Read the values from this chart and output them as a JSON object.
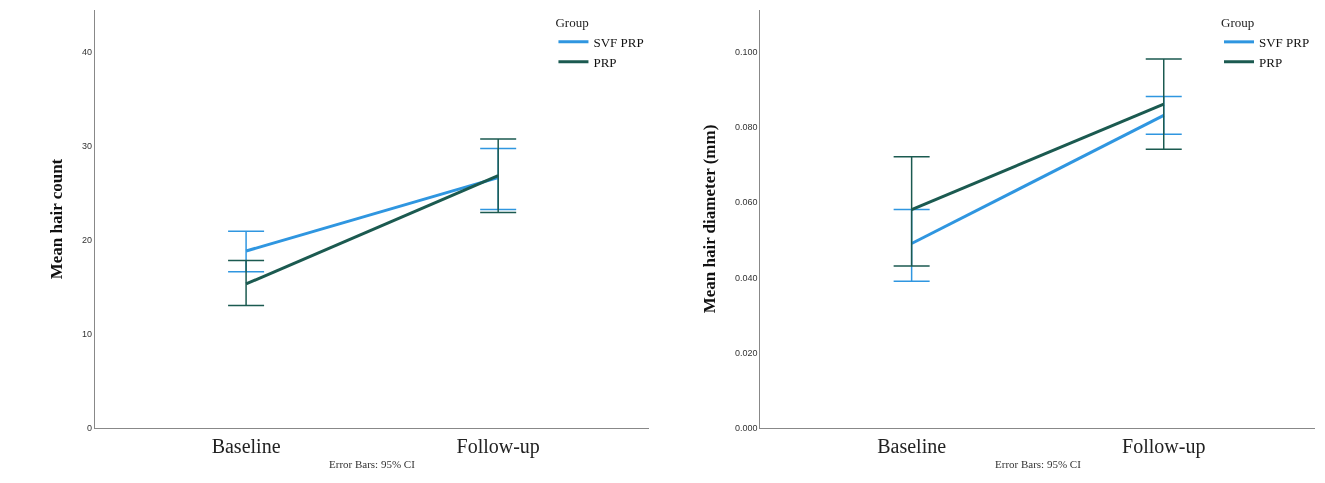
{
  "chart_data": [
    {
      "type": "line",
      "ylabel": "Mean hair count",
      "categories": [
        "Baseline",
        "Follow-up"
      ],
      "ylim": [
        0,
        44.4
      ],
      "yticks": [
        0,
        10,
        20,
        30,
        40
      ],
      "legend": "top right",
      "legend_title": "Group",
      "marker": "none",
      "line_style": "solid",
      "annotations": [
        "Error Bars: 95% CI"
      ],
      "series": [
        {
          "name": "SVF PRP",
          "color": "#2f96e0",
          "values": [
            18.8,
            26.6
          ],
          "errors": [
            [
              16.6,
              20.9
            ],
            [
              23.2,
              29.7
            ]
          ]
        },
        {
          "name": "PRP",
          "color": "#1b5a50",
          "values": [
            15.3,
            26.8
          ],
          "errors": [
            [
              13.0,
              17.8
            ],
            [
              22.9,
              30.7
            ]
          ]
        }
      ]
    },
    {
      "type": "line",
      "ylabel": "Mean hair diameter (mm)",
      "categories": [
        "Baseline",
        "Follow-up"
      ],
      "ylim": [
        0,
        0.111
      ],
      "yticks": [
        {
          "value": 0,
          "label": "0.000"
        },
        {
          "value": 0.02,
          "label": "0.020"
        },
        {
          "value": 0.04,
          "label": "0.040"
        },
        {
          "value": 0.06,
          "label": "0.060"
        },
        {
          "value": 0.08,
          "label": "0.080"
        },
        {
          "value": 0.1,
          "label": "0.100"
        }
      ],
      "legend": "top right",
      "legend_title": "Group",
      "marker": "none",
      "line_style": "solid",
      "annotations": [
        "Error Bars: 95% CI"
      ],
      "series": [
        {
          "name": "SVF PRP",
          "color": "#2f96e0",
          "values": [
            0.049,
            0.083
          ],
          "errors": [
            [
              0.039,
              0.058
            ],
            [
              0.078,
              0.088
            ]
          ]
        },
        {
          "name": "PRP",
          "color": "#1b5a50",
          "values": [
            0.058,
            0.086
          ],
          "errors": [
            [
              0.043,
              0.072
            ],
            [
              0.074,
              0.098
            ]
          ]
        }
      ]
    }
  ]
}
